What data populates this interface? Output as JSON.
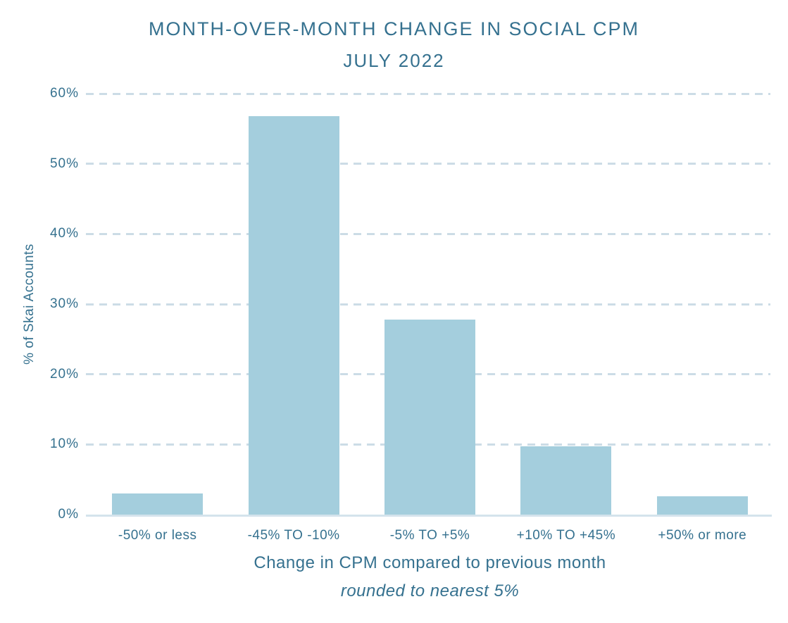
{
  "chart_data": {
    "type": "bar",
    "title": "MONTH-OVER-MONTH CHANGE IN SOCIAL CPM",
    "subtitle": "JULY 2022",
    "categories": [
      "-50% or less",
      "-45% TO -10%",
      "-5% TO +5%",
      "+10% TO +45%",
      "+50% or more"
    ],
    "values": [
      3.0,
      56.8,
      27.8,
      9.7,
      2.6
    ],
    "xlabel": "Change in CPM compared to previous month",
    "xlabel_note": "rounded to nearest 5%",
    "ylabel": "% of Skai Accounts",
    "ylim": [
      0,
      60
    ],
    "ytick_step": 10,
    "ytick_labels": [
      "0%",
      "10%",
      "20%",
      "30%",
      "40%",
      "50%",
      "60%"
    ],
    "grid": "dashed-horizontal",
    "legend": "none",
    "colors": {
      "bar": "#a4cedd",
      "text": "#35718f",
      "gridline": "#ccdce6",
      "axis_line": "#d4e3ec",
      "background": "#ffffff"
    }
  }
}
